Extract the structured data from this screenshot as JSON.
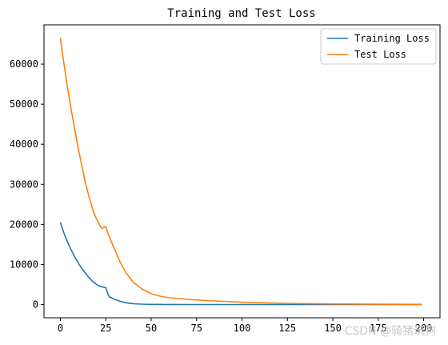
{
  "chart_data": {
    "type": "line",
    "title": "Training and Test Loss",
    "xlabel": "",
    "ylabel": "",
    "xlim": [
      -9,
      209
    ],
    "ylim": [
      -3300,
      69800
    ],
    "x_ticks": [
      0,
      25,
      50,
      75,
      100,
      125,
      150,
      175,
      200
    ],
    "y_ticks": [
      0,
      10000,
      20000,
      30000,
      40000,
      50000,
      60000
    ],
    "grid": false,
    "legend_position": "top-right",
    "series": [
      {
        "name": "Training Loss",
        "color": "#1f77b4",
        "x": [
          0,
          2,
          4,
          6,
          8,
          10,
          12,
          14,
          16,
          18,
          20,
          22,
          24,
          25,
          26,
          27,
          30,
          33,
          36,
          40,
          45,
          50,
          60,
          75,
          100,
          125,
          150,
          175,
          199
        ],
        "y": [
          20500,
          17800,
          15600,
          13600,
          11800,
          10300,
          8900,
          7700,
          6600,
          5700,
          5000,
          4500,
          4300,
          4250,
          2800,
          1900,
          1300,
          800,
          450,
          220,
          90,
          40,
          15,
          5,
          2,
          1,
          1,
          1,
          0
        ]
      },
      {
        "name": "Test Loss",
        "color": "#ff7f0e",
        "x": [
          0,
          2,
          4,
          6,
          8,
          10,
          12,
          14,
          16,
          18,
          20,
          22,
          23,
          24,
          25,
          26,
          28,
          30,
          33,
          36,
          40,
          45,
          50,
          55,
          60,
          70,
          80,
          90,
          100,
          110,
          125,
          150,
          175,
          199
        ],
        "y": [
          66500,
          60000,
          54000,
          48500,
          43500,
          38700,
          34200,
          30000,
          26500,
          23500,
          21200,
          19500,
          19000,
          19200,
          19500,
          18000,
          15800,
          13600,
          10500,
          8000,
          5600,
          3900,
          2700,
          2100,
          1700,
          1300,
          1000,
          800,
          600,
          450,
          300,
          150,
          80,
          50
        ]
      }
    ]
  },
  "watermark": "CSDN @骑猪玩狗"
}
